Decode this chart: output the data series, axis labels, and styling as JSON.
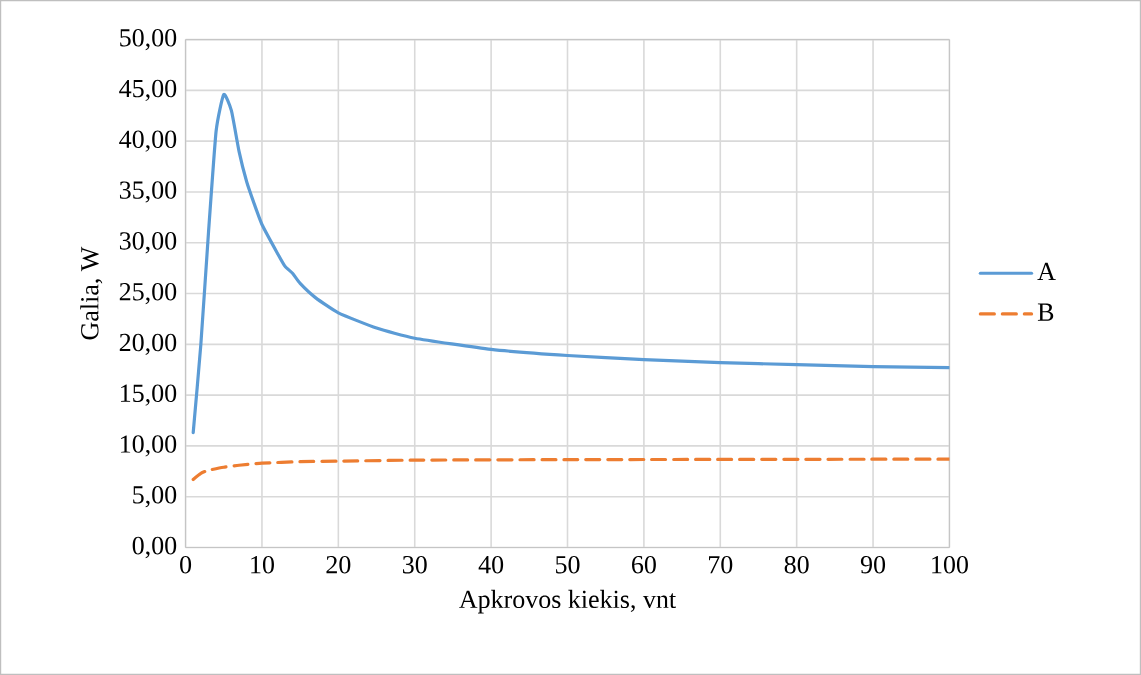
{
  "chart_data": {
    "type": "line",
    "xlabel": "Apkrovos kiekis, vnt",
    "ylabel": "Galia, W",
    "xlim": [
      0,
      100
    ],
    "xticks": [
      0,
      10,
      20,
      30,
      40,
      50,
      60,
      70,
      80,
      90,
      100
    ],
    "ylim": [
      0,
      50
    ],
    "yticks": [
      {
        "value": 0,
        "label": "0,00"
      },
      {
        "value": 5,
        "label": "5,00"
      },
      {
        "value": 10,
        "label": "10,00"
      },
      {
        "value": 15,
        "label": "15,00"
      },
      {
        "value": 20,
        "label": "20,00"
      },
      {
        "value": 25,
        "label": "25,00"
      },
      {
        "value": 30,
        "label": "30,00"
      },
      {
        "value": 35,
        "label": "35,00"
      },
      {
        "value": 40,
        "label": "40,00"
      },
      {
        "value": 45,
        "label": "45,00"
      },
      {
        "value": 50,
        "label": "50,00"
      }
    ],
    "grid": true,
    "legend": "right",
    "marker": "none",
    "series": [
      {
        "name": "A",
        "color": "#5b9bd5",
        "line_style": "solid",
        "x": [
          1,
          2,
          3,
          4,
          5,
          6,
          7,
          8,
          9,
          10,
          12,
          13,
          14,
          15,
          17,
          20,
          25,
          30,
          40,
          50,
          60,
          70,
          80,
          90,
          100
        ],
        "values": [
          11.3,
          20,
          31,
          41,
          44.6,
          43,
          39,
          36,
          33.8,
          31.8,
          29,
          27.7,
          27,
          26,
          24.6,
          23.1,
          21.6,
          20.6,
          19.5,
          18.9,
          18.5,
          18.2,
          18.0,
          17.8,
          17.7
        ]
      },
      {
        "name": "B",
        "color": "#ed7d31",
        "line_style": "dashed",
        "x": [
          1,
          2,
          3,
          5,
          7,
          10,
          15,
          20,
          30,
          50,
          100
        ],
        "values": [
          6.7,
          7.3,
          7.6,
          7.9,
          8.1,
          8.3,
          8.45,
          8.5,
          8.6,
          8.65,
          8.7
        ]
      }
    ]
  }
}
